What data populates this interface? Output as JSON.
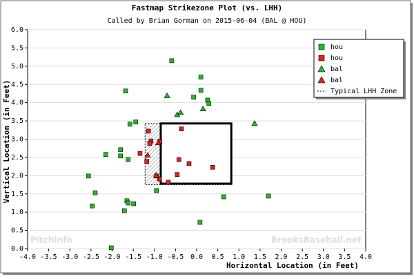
{
  "chart_data": {
    "type": "scatter",
    "title": "Fastmap Strikezone Plot (vs. LHH)",
    "subtitle": "Called by Brian Gorman on 2015-06-04 (BAL @ HOU)",
    "xlabel": "Horizontal Location (in Feet)",
    "ylabel": "Vertical Location (in Feet)",
    "watermarks": [
      "PitchInfo",
      "BrooksBaseball.net"
    ],
    "xlim": [
      -4,
      4
    ],
    "ylim": [
      0,
      6
    ],
    "grid": "y",
    "legend": "upper right",
    "xticks": [
      {
        "value": -4,
        "label": "-4.0"
      },
      {
        "value": -3.5,
        "label": "-3.5"
      },
      {
        "value": -3,
        "label": "-3.0"
      },
      {
        "value": -2.5,
        "label": "-2.5"
      },
      {
        "value": -2,
        "label": "-2.0"
      },
      {
        "value": -1.5,
        "label": "-1.5"
      },
      {
        "value": -1,
        "label": "-1.0"
      },
      {
        "value": -0.5,
        "label": "-0.5"
      },
      {
        "value": 0,
        "label": "0.0"
      },
      {
        "value": 0.5,
        "label": "0.5"
      },
      {
        "value": 1,
        "label": "1.0"
      },
      {
        "value": 1.5,
        "label": "1.5"
      },
      {
        "value": 2,
        "label": "2.0"
      },
      {
        "value": 2.5,
        "label": "2.5"
      },
      {
        "value": 3,
        "label": "3.0"
      },
      {
        "value": 3.5,
        "label": "3.5"
      },
      {
        "value": 4,
        "label": "4.0"
      }
    ],
    "yticks": [
      {
        "value": 0,
        "label": "0.0"
      },
      {
        "value": 0.5,
        "label": "0.5"
      },
      {
        "value": 1,
        "label": "1.0"
      },
      {
        "value": 1.5,
        "label": "1.5"
      },
      {
        "value": 2,
        "label": "2.0"
      },
      {
        "value": 2.5,
        "label": "2.5"
      },
      {
        "value": 3,
        "label": "3.0"
      },
      {
        "value": 3.5,
        "label": "3.5"
      },
      {
        "value": 4,
        "label": "4.0"
      },
      {
        "value": 4.5,
        "label": "4.5"
      },
      {
        "value": 5,
        "label": "5.0"
      },
      {
        "value": 5.5,
        "label": "5.5"
      },
      {
        "value": 6,
        "label": "6.0"
      }
    ],
    "series": [
      {
        "name": "hou",
        "color": "#22bb22",
        "marker": "square",
        "x": [
          -0.59,
          0.1,
          -1.68,
          0.1,
          -0.07,
          0.26,
          0.29,
          -1.44,
          -1.58,
          -2.15,
          -1.8,
          -1.8,
          -1.62,
          -2.56,
          -2.4,
          -2.47,
          -1.65,
          -1.62,
          -1.49,
          -1.71,
          -0.95,
          0.64,
          1.7,
          0.08,
          -2.02
        ],
        "values": [
          5.15,
          4.7,
          4.32,
          4.34,
          4.15,
          4.07,
          3.98,
          3.47,
          3.41,
          2.58,
          2.71,
          2.54,
          2.44,
          1.99,
          1.53,
          1.17,
          1.31,
          1.25,
          1.23,
          1.04,
          1.59,
          1.42,
          1.44,
          0.72,
          0.02
        ]
      },
      {
        "name": "hou",
        "color": "#dd2222",
        "marker": "square",
        "x": [
          -1.14,
          -0.36,
          -1.08,
          -1.11,
          -0.87,
          -1.34,
          -1.18,
          -0.42,
          -0.18,
          0.38,
          -0.46,
          -0.67,
          -0.88,
          -0.95
        ],
        "values": [
          3.22,
          3.28,
          2.95,
          2.88,
          2.94,
          2.61,
          2.39,
          2.44,
          2.33,
          2.23,
          2.03,
          1.82,
          1.91,
          1.99
        ]
      },
      {
        "name": "bal",
        "color": "#22bb22",
        "marker": "triangle",
        "x": [
          -0.7,
          -0.46,
          -0.38,
          0.15,
          1.37
        ],
        "values": [
          4.19,
          3.67,
          3.73,
          3.83,
          3.43
        ]
      },
      {
        "name": "bal",
        "color": "#dd2222",
        "marker": "triangle",
        "x": [
          -0.91,
          -1.16,
          -0.96
        ],
        "values": [
          2.9,
          2.56,
          2.01
        ]
      }
    ],
    "zone": {
      "name": "Typical LHH Zone",
      "x": [
        -1.22,
        0.82
      ],
      "y": [
        1.75,
        3.43
      ]
    },
    "strike_box": {
      "x": [
        -0.85,
        0.82
      ],
      "y": [
        1.78,
        3.43
      ]
    }
  }
}
